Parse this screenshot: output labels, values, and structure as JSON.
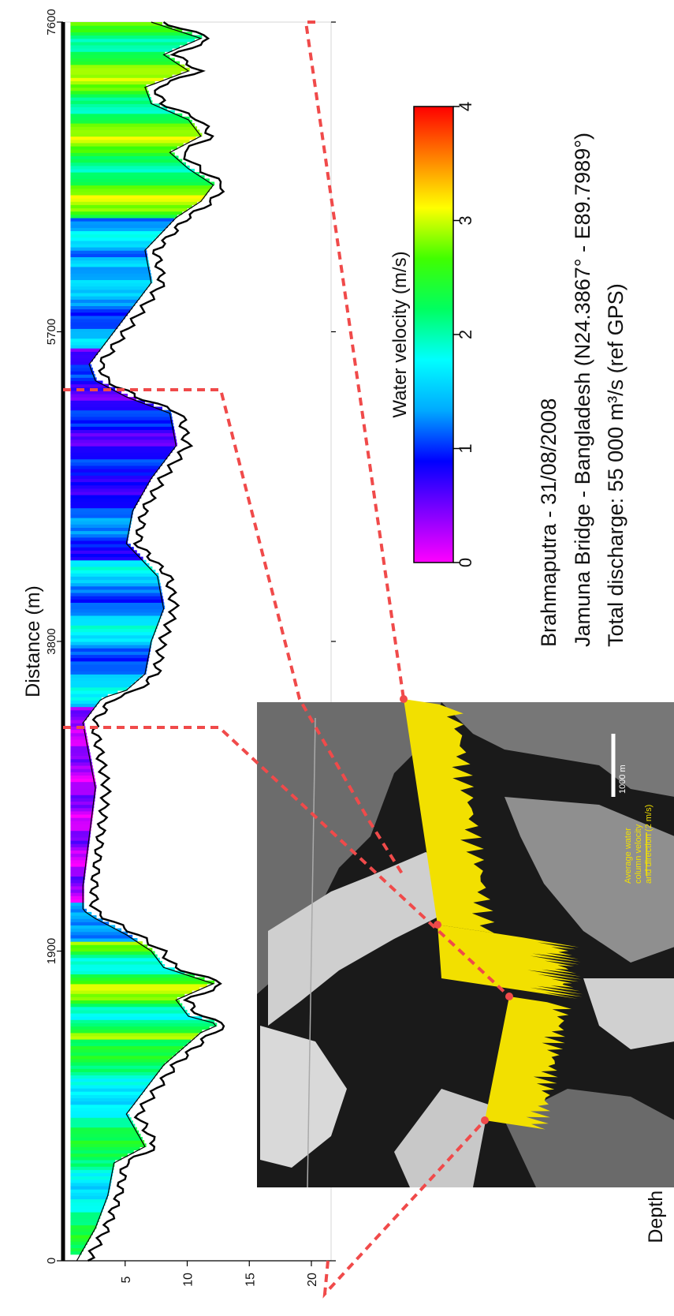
{
  "chart_data": {
    "type": "heatmap",
    "title": "",
    "xlabel": "Distance (m)",
    "ylabel": "Depth (m)",
    "x_ticks": [
      "0",
      "1900",
      "3800",
      "5700",
      "7600"
    ],
    "x_tick_values": [
      0,
      1900,
      3800,
      5700,
      7600
    ],
    "y_ticks": [
      "5",
      "10",
      "15",
      "20"
    ],
    "y_tick_values": [
      5,
      10,
      15,
      20
    ],
    "xlim": [
      0,
      7600
    ],
    "ylim": [
      0,
      20
    ],
    "colorbar": {
      "label": "Water velocity (m/s)",
      "ticks": [
        "0",
        "1",
        "2",
        "3",
        "4"
      ],
      "tick_values": [
        0,
        1,
        2,
        3,
        4
      ],
      "range": [
        0,
        4
      ],
      "colors": [
        "#ff00ff",
        "#8000ff",
        "#0000ff",
        "#00aaff",
        "#00ffff",
        "#00ff60",
        "#40ff00",
        "#ffff00",
        "#ff8000",
        "#ff0000"
      ]
    },
    "bed_profile": {
      "x": [
        0,
        200,
        400,
        600,
        700,
        900,
        1100,
        1200,
        1300,
        1400,
        1450,
        1500,
        1600,
        1700,
        1800,
        1900,
        2000,
        2100,
        2150,
        2300,
        2600,
        2900,
        3100,
        3300,
        3450,
        3500,
        3600,
        3800,
        4000,
        4200,
        4400,
        4600,
        4800,
        5000,
        5200,
        5300,
        5400,
        5500,
        5600,
        5700,
        5800,
        5900,
        6000,
        6200,
        6400,
        6500,
        6600,
        6700,
        6800,
        6900,
        7000,
        7100,
        7200,
        7300,
        7400,
        7500,
        7600
      ],
      "depth": [
        2,
        3.5,
        4.5,
        5,
        7.5,
        6,
        8,
        9,
        10.5,
        12,
        13.5,
        11,
        10,
        13,
        9,
        8,
        6,
        3.5,
        2.5,
        2.5,
        3,
        3.5,
        3,
        2.5,
        4,
        6,
        7.5,
        8,
        9,
        8.5,
        6,
        6.5,
        8,
        10,
        9.5,
        6,
        3.5,
        3,
        4,
        5,
        6,
        7,
        8,
        7.5,
        10,
        12,
        13,
        11,
        9.5,
        12,
        11,
        8,
        7.5,
        11,
        9,
        12,
        8
      ]
    },
    "annotation_lines": [
      "Brahmaputra - 31/08/2008",
      "Jamuna Bridge - Bangladesh (N24.3867° - E89.7989°)",
      "Total discharge: 55 000 m³/s (ref GPS)"
    ]
  },
  "inset": {
    "scale_label": "1000 m",
    "legend_line1": "Average water",
    "legend_line2": "column velocity",
    "legend_line3": "and direction (2 m/s)",
    "legend_color": "#f2e000"
  },
  "colors": {
    "connector": "#f04a4a",
    "vector": "#f2e000"
  }
}
